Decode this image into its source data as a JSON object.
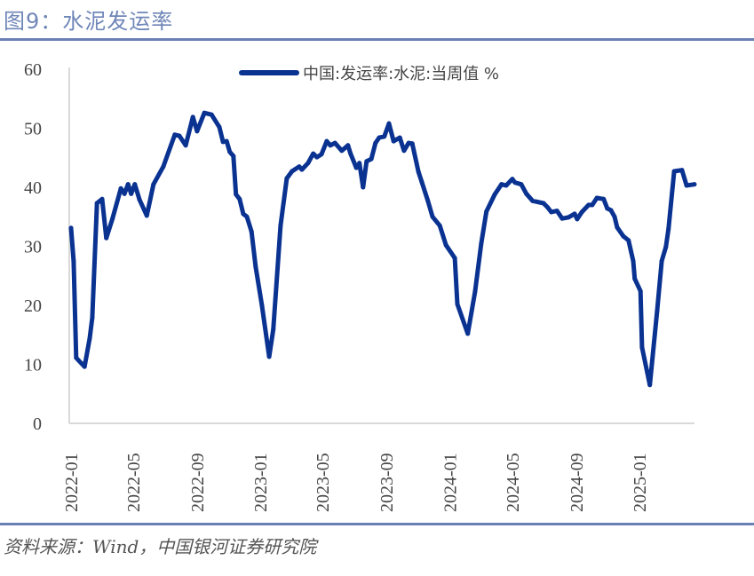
{
  "title": "图9：水泥发运率",
  "source": "资料来源：Wind，中国银河证券研究院",
  "colors": {
    "line": "#0a3291",
    "rule": "#6a80b5",
    "axis": "#d9d9d9"
  },
  "chart_data": {
    "type": "line",
    "title": "",
    "xlabel": "",
    "ylabel": "",
    "ylim": [
      0,
      60
    ],
    "yticks": [
      "0",
      "10",
      "20",
      "30",
      "40",
      "50",
      "60"
    ],
    "xticks": [
      "2022-01",
      "2022-05",
      "2022-09",
      "2023-01",
      "2023-05",
      "2023-09",
      "2024-01",
      "2024-05",
      "2024-09",
      "2025-01"
    ],
    "grid": false,
    "legend_position": "top-center",
    "series": [
      {
        "name": "中国:发运率:水泥:当周值 %",
        "points": [
          [
            "2022-01-01",
            33.1
          ],
          [
            "2022-01-06",
            27.5
          ],
          [
            "2022-01-11",
            11.1
          ],
          [
            "2022-01-27",
            9.6
          ],
          [
            "2022-02-06",
            14.4
          ],
          [
            "2022-02-11",
            17.9
          ],
          [
            "2022-02-20",
            37.3
          ],
          [
            "2022-03-02",
            38.0
          ],
          [
            "2022-03-10",
            31.4
          ],
          [
            "2022-03-22",
            34.7
          ],
          [
            "2022-04-07",
            39.8
          ],
          [
            "2022-04-14",
            38.9
          ],
          [
            "2022-04-21",
            40.5
          ],
          [
            "2022-04-27",
            38.9
          ],
          [
            "2022-05-04",
            40.5
          ],
          [
            "2022-05-13",
            37.9
          ],
          [
            "2022-05-27",
            35.2
          ],
          [
            "2022-06-09",
            40.5
          ],
          [
            "2022-06-28",
            43.5
          ],
          [
            "2022-07-20",
            48.9
          ],
          [
            "2022-07-29",
            48.7
          ],
          [
            "2022-08-10",
            47.1
          ],
          [
            "2022-08-24",
            51.9
          ],
          [
            "2022-09-01",
            49.5
          ],
          [
            "2022-09-15",
            52.6
          ],
          [
            "2022-09-29",
            52.3
          ],
          [
            "2022-10-14",
            50.2
          ],
          [
            "2022-10-21",
            47.7
          ],
          [
            "2022-10-28",
            47.8
          ],
          [
            "2022-11-03",
            46.0
          ],
          [
            "2022-11-10",
            45.3
          ],
          [
            "2022-11-15",
            38.8
          ],
          [
            "2022-11-22",
            38.0
          ],
          [
            "2022-11-29",
            35.5
          ],
          [
            "2022-12-06",
            35.0
          ],
          [
            "2022-12-15",
            32.5
          ],
          [
            "2022-12-23",
            26.5
          ],
          [
            "2023-01-04",
            20.0
          ],
          [
            "2023-01-18",
            11.3
          ],
          [
            "2023-01-26",
            15.9
          ],
          [
            "2023-02-09",
            33.5
          ],
          [
            "2023-02-21",
            41.5
          ],
          [
            "2023-03-03",
            42.7
          ],
          [
            "2023-03-17",
            43.5
          ],
          [
            "2023-03-22",
            43.0
          ],
          [
            "2023-04-03",
            44.1
          ],
          [
            "2023-04-13",
            45.7
          ],
          [
            "2023-04-20",
            45.1
          ],
          [
            "2023-04-29",
            45.6
          ],
          [
            "2023-05-09",
            47.8
          ],
          [
            "2023-05-16",
            47.1
          ],
          [
            "2023-05-25",
            47.5
          ],
          [
            "2023-06-07",
            46.2
          ],
          [
            "2023-06-19",
            47.1
          ],
          [
            "2023-06-24",
            45.7
          ],
          [
            "2023-07-05",
            43.3
          ],
          [
            "2023-07-11",
            44.1
          ],
          [
            "2023-07-18",
            40.0
          ],
          [
            "2023-07-25",
            44.4
          ],
          [
            "2023-08-03",
            44.8
          ],
          [
            "2023-08-11",
            47.5
          ],
          [
            "2023-08-18",
            48.4
          ],
          [
            "2023-08-28",
            48.6
          ],
          [
            "2023-09-06",
            50.8
          ],
          [
            "2023-09-15",
            47.8
          ],
          [
            "2023-09-27",
            48.4
          ],
          [
            "2023-10-05",
            46.2
          ],
          [
            "2023-10-14",
            47.5
          ],
          [
            "2023-10-21",
            47.4
          ],
          [
            "2023-11-02",
            42.6
          ],
          [
            "2023-11-08",
            41.0
          ],
          [
            "2023-11-20",
            37.7
          ],
          [
            "2023-11-29",
            35.0
          ],
          [
            "2023-12-13",
            33.5
          ],
          [
            "2023-12-25",
            30.2
          ],
          [
            "2024-01-11",
            28.0
          ],
          [
            "2024-01-16",
            20.2
          ],
          [
            "2024-02-05",
            15.2
          ],
          [
            "2024-02-19",
            22.3
          ],
          [
            "2024-03-02",
            30.5
          ],
          [
            "2024-03-12",
            35.9
          ],
          [
            "2024-03-28",
            38.8
          ],
          [
            "2024-04-10",
            40.5
          ],
          [
            "2024-04-19",
            40.3
          ],
          [
            "2024-05-01",
            41.4
          ],
          [
            "2024-05-06",
            40.8
          ],
          [
            "2024-05-18",
            40.5
          ],
          [
            "2024-05-28",
            38.9
          ],
          [
            "2024-06-09",
            37.7
          ],
          [
            "2024-06-30",
            37.3
          ],
          [
            "2024-07-08",
            36.6
          ],
          [
            "2024-07-15",
            35.8
          ],
          [
            "2024-07-26",
            36.0
          ],
          [
            "2024-08-05",
            34.7
          ],
          [
            "2024-08-17",
            34.9
          ],
          [
            "2024-08-29",
            35.5
          ],
          [
            "2024-09-03",
            34.6
          ],
          [
            "2024-09-12",
            35.8
          ],
          [
            "2024-09-25",
            37.0
          ],
          [
            "2024-10-02",
            37.0
          ],
          [
            "2024-10-11",
            38.2
          ],
          [
            "2024-10-24",
            38.0
          ],
          [
            "2024-10-31",
            36.4
          ],
          [
            "2024-11-07",
            36.1
          ],
          [
            "2024-11-14",
            35.0
          ],
          [
            "2024-11-19",
            33.2
          ],
          [
            "2024-12-01",
            31.7
          ],
          [
            "2024-12-11",
            31.0
          ],
          [
            "2024-12-20",
            27.5
          ],
          [
            "2024-12-23",
            24.5
          ],
          [
            "2025-01-03",
            22.4
          ],
          [
            "2025-01-06",
            12.9
          ],
          [
            "2025-01-21",
            6.5
          ],
          [
            "2025-02-04",
            19.0
          ],
          [
            "2025-02-13",
            27.5
          ],
          [
            "2025-02-21",
            29.9
          ],
          [
            "2025-02-26",
            32.9
          ],
          [
            "2025-03-09",
            42.7
          ],
          [
            "2025-03-24",
            42.9
          ],
          [
            "2025-04-02",
            40.3
          ],
          [
            "2025-04-17",
            40.5
          ]
        ]
      }
    ]
  }
}
